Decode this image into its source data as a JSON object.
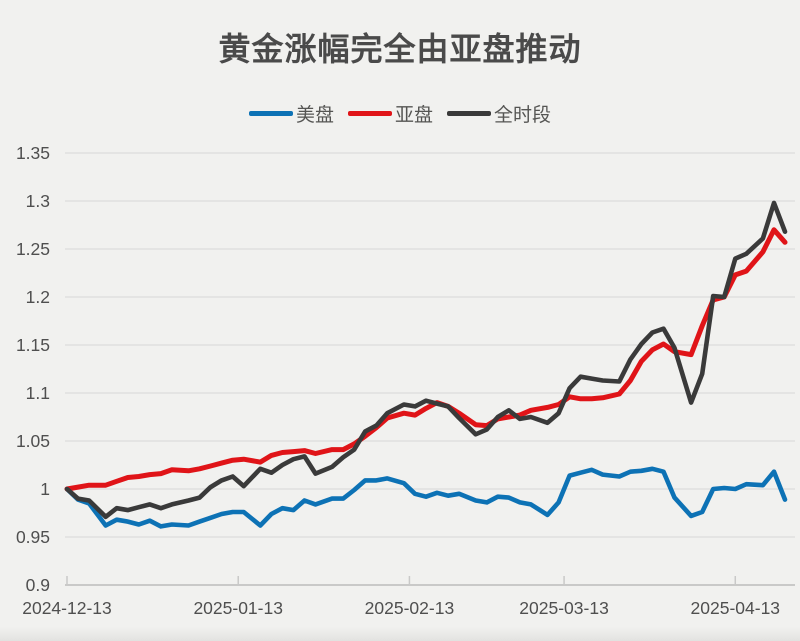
{
  "page": {
    "background": "#f1f1ef"
  },
  "chart": {
    "title": "黄金涨幅完全由亚盘推动",
    "legend": [
      {
        "id": "us",
        "label": "美盘",
        "color": "#0d72b5"
      },
      {
        "id": "asia",
        "label": "亚盘",
        "color": "#e01418"
      },
      {
        "id": "full",
        "label": "全时段",
        "color": "#3a3a3a"
      }
    ]
  },
  "chart_data": {
    "type": "line",
    "title": "黄金涨幅完全由亚盘推动",
    "x_unit": "days since 2024-12-13",
    "x": [
      0,
      2,
      4,
      7,
      9,
      11,
      13,
      15,
      17,
      19,
      22,
      24,
      26,
      28,
      30,
      32,
      35,
      37,
      39,
      41,
      43,
      45,
      48,
      50,
      52,
      54,
      56,
      58,
      61,
      63,
      65,
      67,
      69,
      71,
      74,
      76,
      78,
      80,
      82,
      84,
      87,
      89,
      91,
      93,
      95,
      97,
      100,
      102,
      104,
      106,
      108,
      110,
      113,
      115,
      117,
      119,
      121,
      123,
      126,
      128,
      130
    ],
    "series": [
      {
        "name": "美盘",
        "color": "#0d72b5",
        "values": [
          1.0,
          0.989,
          0.985,
          0.962,
          0.968,
          0.966,
          0.963,
          0.967,
          0.961,
          0.963,
          0.962,
          0.966,
          0.97,
          0.974,
          0.976,
          0.976,
          0.962,
          0.974,
          0.98,
          0.978,
          0.988,
          0.984,
          0.99,
          0.99,
          0.999,
          1.009,
          1.009,
          1.011,
          1.006,
          0.995,
          0.992,
          0.996,
          0.993,
          0.995,
          0.988,
          0.986,
          0.992,
          0.991,
          0.986,
          0.984,
          0.973,
          0.986,
          1.014,
          1.017,
          1.02,
          1.015,
          1.013,
          1.018,
          1.019,
          1.021,
          1.018,
          0.991,
          0.972,
          0.976,
          1.0,
          1.001,
          1.0,
          1.005,
          1.004,
          1.018,
          0.989
        ]
      },
      {
        "name": "亚盘",
        "color": "#e01418",
        "values": [
          1.0,
          1.002,
          1.004,
          1.004,
          1.008,
          1.012,
          1.013,
          1.015,
          1.016,
          1.02,
          1.019,
          1.021,
          1.024,
          1.027,
          1.03,
          1.031,
          1.028,
          1.035,
          1.038,
          1.039,
          1.04,
          1.037,
          1.041,
          1.041,
          1.047,
          1.055,
          1.064,
          1.074,
          1.079,
          1.077,
          1.084,
          1.09,
          1.086,
          1.079,
          1.067,
          1.066,
          1.073,
          1.075,
          1.077,
          1.082,
          1.085,
          1.088,
          1.096,
          1.094,
          1.094,
          1.095,
          1.099,
          1.113,
          1.133,
          1.145,
          1.151,
          1.143,
          1.14,
          1.17,
          1.197,
          1.2,
          1.223,
          1.227,
          1.247,
          1.27,
          1.257
        ]
      },
      {
        "name": "全时段",
        "color": "#3a3a3a",
        "values": [
          1.0,
          0.99,
          0.988,
          0.971,
          0.98,
          0.978,
          0.981,
          0.984,
          0.98,
          0.984,
          0.988,
          0.991,
          1.002,
          1.009,
          1.013,
          1.003,
          1.021,
          1.017,
          1.025,
          1.031,
          1.034,
          1.016,
          1.023,
          1.033,
          1.041,
          1.06,
          1.066,
          1.079,
          1.088,
          1.086,
          1.092,
          1.089,
          1.086,
          1.074,
          1.057,
          1.062,
          1.075,
          1.082,
          1.073,
          1.075,
          1.069,
          1.079,
          1.105,
          1.117,
          1.115,
          1.113,
          1.112,
          1.135,
          1.151,
          1.163,
          1.167,
          1.147,
          1.09,
          1.12,
          1.201,
          1.2,
          1.24,
          1.245,
          1.261,
          1.298,
          1.268
        ]
      }
    ],
    "xticks": [
      {
        "label": "2024-12-13",
        "day": 0
      },
      {
        "label": "2025-01-13",
        "day": 31
      },
      {
        "label": "2025-02-13",
        "day": 62
      },
      {
        "label": "2025-03-13",
        "day": 90
      },
      {
        "label": "2025-04-13",
        "day": 121
      }
    ],
    "yticks": [
      0.9,
      0.95,
      1,
      1.05,
      1.1,
      1.15,
      1.2,
      1.25,
      1.3,
      1.35
    ],
    "ylim": [
      0.9,
      1.35
    ],
    "xlim": [
      0,
      130
    ],
    "grid": true,
    "legend_position": "top",
    "colors": {
      "grid": "#e0e0df",
      "axis": "#c9c9c8",
      "tick_text": "#4f4f4f"
    }
  }
}
